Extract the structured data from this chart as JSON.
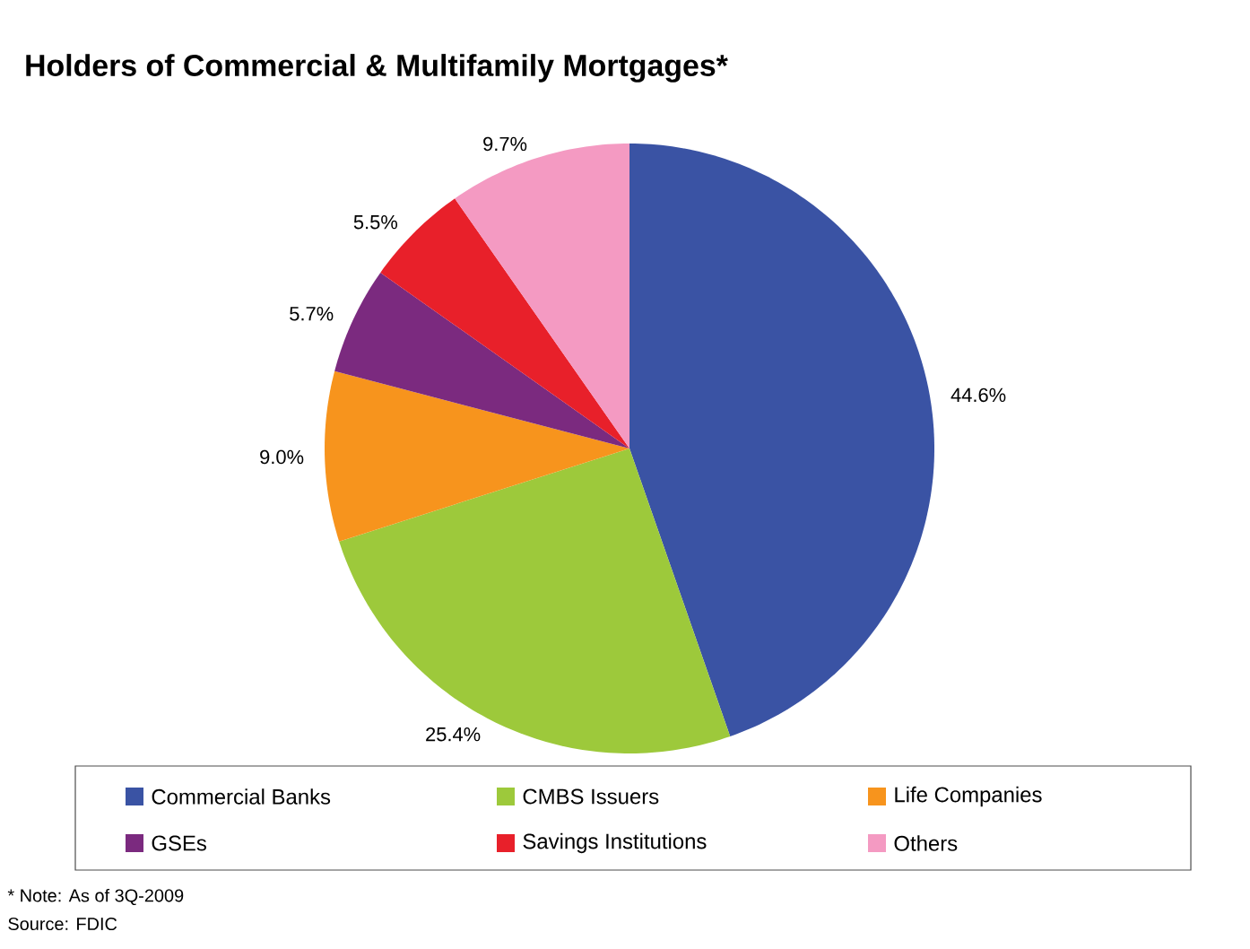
{
  "chart_data": {
    "type": "pie",
    "title": "Holders of Commercial & Multifamily Mortgages*",
    "categories": [
      "Commercial Banks",
      "CMBS Issuers",
      "Life Companies",
      "GSEs",
      "Savings Institutions",
      "Others"
    ],
    "values": [
      44.6,
      25.4,
      9.0,
      5.7,
      5.5,
      9.7
    ],
    "value_labels": [
      "44.6%",
      "25.4%",
      "9.0%",
      "5.7%",
      "5.5%",
      "9.7%"
    ],
    "colors": [
      "#3a53a4",
      "#9dc93b",
      "#f7941d",
      "#7b2a7f",
      "#e8202a",
      "#f49ac2"
    ],
    "legend": "bottom",
    "annotations": [
      "* Note: As of 3Q-2009",
      "Source: FDIC"
    ]
  }
}
